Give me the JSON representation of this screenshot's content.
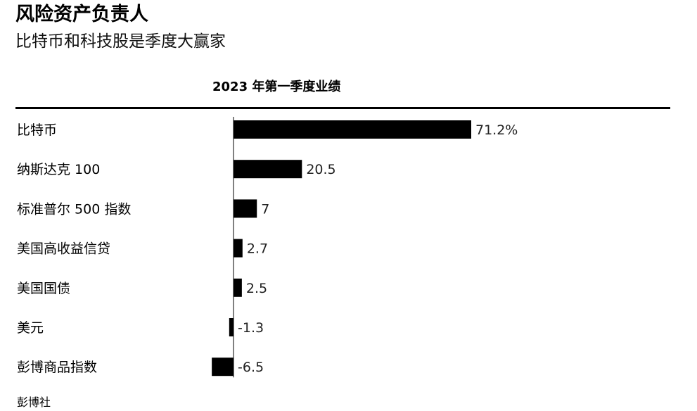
{
  "header": {
    "title": "风险资产负责人",
    "subtitle": "比特币和科技股是季度大赢家"
  },
  "source": "彭博社",
  "chart_data": {
    "type": "bar",
    "orientation": "horizontal",
    "title": "2023 年第一季度业绩",
    "categories": [
      "比特币",
      "纳斯达克 100",
      "标准普尔 500 指数",
      "美国高收益信贷",
      "美国国债",
      "美元",
      "彭博商品指数"
    ],
    "values": [
      71.2,
      20.5,
      7,
      2.7,
      2.5,
      -1.3,
      -6.5
    ],
    "value_labels": [
      "71.2%",
      "20.5",
      "7",
      "2.7",
      "2.5",
      "-1.3",
      "-6.5"
    ],
    "xlim": [
      -7,
      80
    ],
    "bar_color": "#000000",
    "grid": false,
    "legend": "none"
  }
}
